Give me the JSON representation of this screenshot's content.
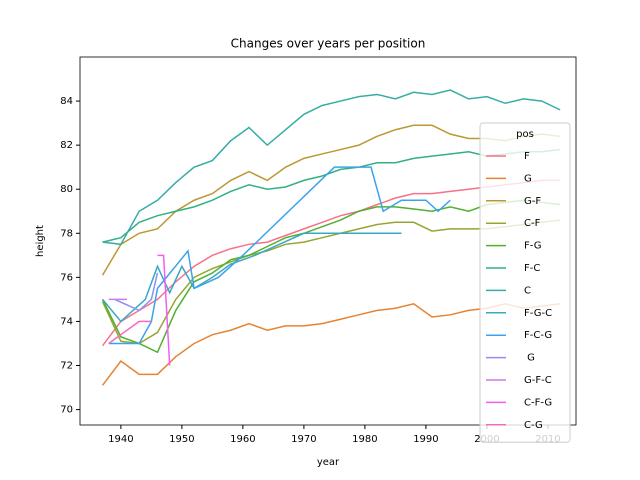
{
  "chart_data": {
    "type": "line",
    "title": "Changes over years per position",
    "x_label": "year",
    "y_label": "height",
    "legend_title": "pos",
    "legend_position": "right",
    "xlim": [
      1933.3,
      2014.6
    ],
    "ylim": [
      69.3,
      86.0
    ],
    "xticks": [
      1940,
      1950,
      1960,
      1970,
      1980,
      1990,
      2000,
      2010
    ],
    "yticks": [
      70,
      72,
      74,
      76,
      78,
      80,
      82,
      84
    ],
    "series": [
      {
        "name": "F",
        "color": "#f77189",
        "x": [
          1937,
          1940,
          1943,
          1946,
          1949,
          1952,
          1955,
          1958,
          1961,
          1964,
          1967,
          1970,
          1973,
          1976,
          1979,
          1982,
          1985,
          1988,
          1991,
          1994,
          1997,
          2000,
          2003,
          2006,
          2009,
          2012
        ],
        "values": [
          72.9,
          74.0,
          74.5,
          75.0,
          75.8,
          76.5,
          77.0,
          77.3,
          77.5,
          77.6,
          77.9,
          78.2,
          78.5,
          78.8,
          79.0,
          79.3,
          79.6,
          79.8,
          79.8,
          79.9,
          80.0,
          80.1,
          80.2,
          80.3,
          80.4,
          80.4
        ]
      },
      {
        "name": "G",
        "color": "#e68332",
        "x": [
          1937,
          1940,
          1943,
          1946,
          1949,
          1952,
          1955,
          1958,
          1961,
          1964,
          1967,
          1970,
          1973,
          1976,
          1979,
          1982,
          1985,
          1988,
          1991,
          1994,
          1997,
          2000,
          2003,
          2006,
          2009,
          2012
        ],
        "values": [
          71.1,
          72.2,
          71.6,
          71.6,
          72.4,
          73.0,
          73.4,
          73.6,
          73.9,
          73.6,
          73.8,
          73.8,
          73.9,
          74.1,
          74.3,
          74.5,
          74.6,
          74.8,
          74.2,
          74.3,
          74.5,
          74.6,
          74.8,
          74.6,
          74.7,
          74.8
        ]
      },
      {
        "name": "G-F",
        "color": "#bb9832",
        "x": [
          1937,
          1940,
          1943,
          1946,
          1949,
          1952,
          1955,
          1958,
          1961,
          1964,
          1967,
          1970,
          1973,
          1976,
          1979,
          1982,
          1985,
          1988,
          1991,
          1994,
          1997,
          2000,
          2003,
          2006,
          2009,
          2012
        ],
        "values": [
          76.1,
          77.5,
          78.0,
          78.2,
          79.0,
          79.5,
          79.8,
          80.4,
          80.8,
          80.4,
          81.0,
          81.4,
          81.6,
          81.8,
          82.0,
          82.4,
          82.7,
          82.9,
          82.9,
          82.5,
          82.3,
          82.3,
          82.2,
          82.4,
          82.5,
          82.4
        ]
      },
      {
        "name": "C-F",
        "color": "#97a431",
        "x": [
          1937,
          1940,
          1943,
          1946,
          1949,
          1952,
          1955,
          1958,
          1961,
          1964,
          1967,
          1970,
          1973,
          1976,
          1979,
          1982,
          1985,
          1988,
          1991,
          1994,
          1997,
          2000,
          2003,
          2006,
          2009,
          2012
        ],
        "values": [
          74.9,
          73.1,
          73.0,
          73.5,
          75.0,
          76.0,
          76.4,
          76.7,
          77.0,
          77.2,
          77.5,
          77.6,
          77.8,
          78.0,
          78.2,
          78.4,
          78.5,
          78.5,
          78.1,
          78.2,
          78.2,
          78.2,
          78.3,
          78.4,
          78.5,
          78.6
        ]
      },
      {
        "name": "F-G",
        "color": "#50b131",
        "x": [
          1937,
          1940,
          1943,
          1946,
          1949,
          1952,
          1955,
          1958,
          1961,
          1964,
          1967,
          1970,
          1973,
          1976,
          1979,
          1982,
          1985,
          1988,
          1991,
          1994,
          1997,
          2000,
          2003,
          2006,
          2009,
          2012
        ],
        "values": [
          75.0,
          73.3,
          73.0,
          72.6,
          74.5,
          75.8,
          76.2,
          76.8,
          77.0,
          77.4,
          77.8,
          78.0,
          78.3,
          78.6,
          79.0,
          79.2,
          79.2,
          79.1,
          79.0,
          79.2,
          79.0,
          79.3,
          79.4,
          79.5,
          79.4,
          79.3
        ]
      },
      {
        "name": "F-C",
        "color": "#34af84",
        "x": [
          1937,
          1940,
          1943,
          1946,
          1949,
          1952,
          1955,
          1958,
          1961,
          1964,
          1967,
          1970,
          1973,
          1976,
          1979,
          1982,
          1985,
          1988,
          1991,
          1994,
          1997,
          2000,
          2003,
          2006,
          2009,
          2012
        ],
        "values": [
          77.6,
          77.8,
          78.5,
          78.8,
          79.0,
          79.2,
          79.5,
          79.9,
          80.2,
          80.0,
          80.1,
          80.4,
          80.6,
          80.9,
          81.0,
          81.2,
          81.2,
          81.4,
          81.5,
          81.6,
          81.7,
          81.5,
          81.6,
          81.7,
          81.7,
          81.8
        ]
      },
      {
        "name": "C",
        "color": "#36ada4",
        "x": [
          1937,
          1940,
          1943,
          1946,
          1949,
          1952,
          1955,
          1958,
          1961,
          1964,
          1967,
          1970,
          1973,
          1976,
          1979,
          1982,
          1985,
          1988,
          1991,
          1994,
          1997,
          2000,
          2003,
          2006,
          2009,
          2012
        ],
        "values": [
          77.6,
          77.5,
          79.0,
          79.5,
          80.3,
          81.0,
          81.3,
          82.2,
          82.8,
          82.0,
          82.7,
          83.4,
          83.8,
          84.0,
          84.2,
          84.3,
          84.1,
          84.4,
          84.3,
          84.5,
          84.1,
          84.2,
          83.9,
          84.1,
          84.0,
          83.6
        ]
      },
      {
        "name": "F-G-C",
        "color": "#38a9c5",
        "x": [
          1937,
          1940,
          1944,
          1946,
          1948,
          1950,
          1952,
          1955,
          1958,
          1962,
          1970,
          1986
        ],
        "values": [
          75.0,
          74.0,
          75.0,
          76.5,
          75.3,
          76.5,
          75.5,
          76.0,
          76.6,
          77.0,
          78.0,
          78.0
        ]
      },
      {
        "name": "F-C-G",
        "color": "#3ba3ec",
        "x": [
          1938,
          1943,
          1945,
          1946,
          1951,
          1952,
          1956,
          1960,
          1975,
          1981,
          1983,
          1986,
          1990,
          1992,
          1994
        ],
        "values": [
          73.0,
          73.0,
          74.0,
          75.5,
          77.2,
          75.5,
          76.0,
          77.0,
          81.0,
          81.0,
          79.0,
          79.5,
          79.5,
          79.0,
          79.5
        ]
      },
      {
        "name": " G",
        "color": "#8e8ff5",
        "x": [
          1939,
          1943,
          1945,
          1946
        ],
        "values": [
          75.0,
          74.5,
          75.0,
          76.2
        ]
      },
      {
        "name": "G-F-C",
        "color": "#cc7af4",
        "x": [
          1938,
          1941
        ],
        "values": [
          75.0,
          75.0
        ]
      },
      {
        "name": "C-F-G",
        "color": "#f45cf2",
        "x": [
          1946,
          1947,
          1948
        ],
        "values": [
          77.0,
          77.0,
          72.0
        ]
      },
      {
        "name": "C-G",
        "color": "#f668c2",
        "x": [
          1938,
          1943,
          1945
        ],
        "values": [
          73.0,
          74.0,
          74.0
        ]
      }
    ]
  }
}
